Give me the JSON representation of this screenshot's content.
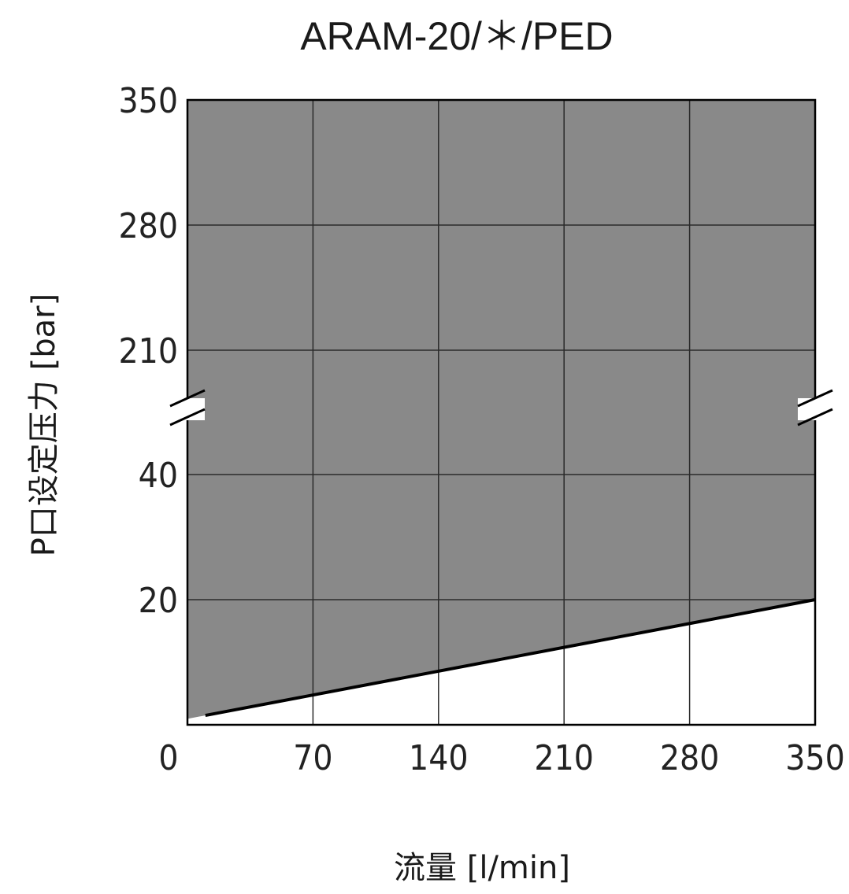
{
  "chart_data": {
    "type": "area",
    "title": "ARAM-20/＊/PED",
    "xlabel": "流量 [l/min]",
    "ylabel": "P口设定压力 [bar]",
    "x_ticks": [
      "0",
      "70",
      "140",
      "210",
      "280",
      "350"
    ],
    "y_ticks": [
      "20",
      "40",
      "210",
      "280",
      "350"
    ],
    "xlim": [
      0,
      350
    ],
    "y_axis_break": true,
    "grid": true,
    "legend": "none",
    "series": [
      {
        "x": [
          10,
          350
        ],
        "y": [
          1.5,
          20
        ]
      }
    ],
    "colors": {
      "region_fill": "#898989",
      "grid": "#2a2a2a",
      "line": "#000000"
    }
  }
}
